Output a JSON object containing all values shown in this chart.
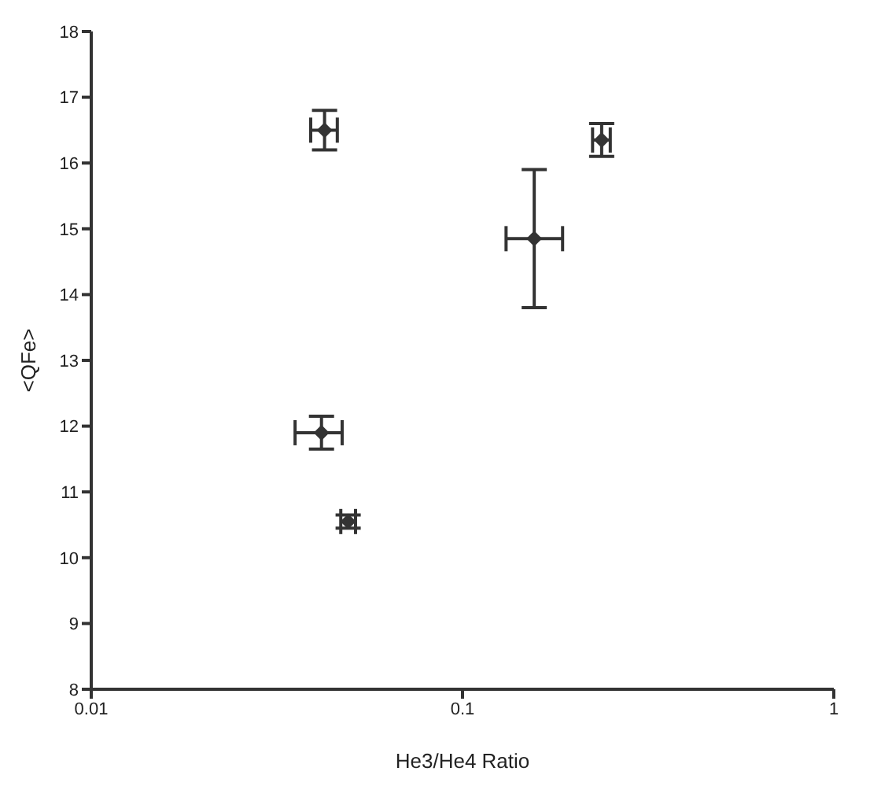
{
  "chart_data": {
    "type": "scatter",
    "xlabel": "He3/He4 Ratio",
    "ylabel": "<QFe>",
    "log": "x",
    "grid": false,
    "legend": false,
    "marker": "diamond",
    "xlim": [
      0.01,
      1
    ],
    "xticks": [
      0.01,
      0.1,
      1
    ],
    "ylim": [
      8,
      18
    ],
    "yticks": [
      8,
      9,
      10,
      11,
      12,
      13,
      14,
      15,
      16,
      17,
      18
    ],
    "series": [
      {
        "color": "#333333",
        "x": [
          0.0425,
          0.156,
          0.237,
          0.0417,
          0.0492
        ],
        "values": [
          16.5,
          14.85,
          16.35,
          11.9,
          10.55
        ],
        "errors": [
          [
            16.2,
            16.8
          ],
          [
            13.8,
            15.9
          ],
          [
            16.1,
            16.6
          ],
          [
            11.65,
            12.15
          ],
          [
            10.45,
            10.65
          ]
        ],
        "xerrors": [
          [
            0.039,
            0.046
          ],
          [
            0.131,
            0.186
          ],
          [
            0.224,
            0.25
          ],
          [
            0.0354,
            0.0474
          ],
          [
            0.047,
            0.0515
          ]
        ]
      }
    ]
  }
}
